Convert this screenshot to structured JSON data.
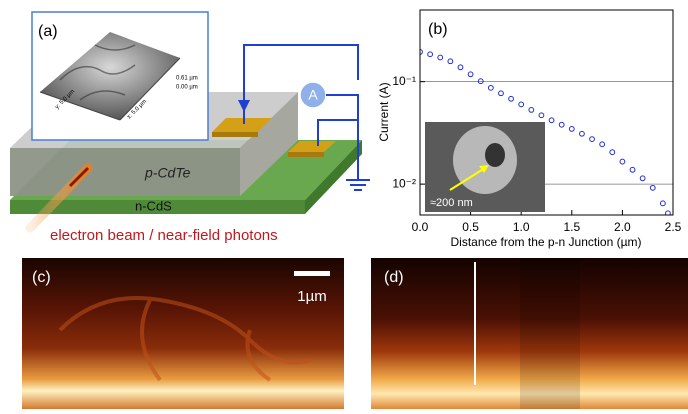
{
  "panels": {
    "a": {
      "label": "(a)",
      "afm_z_top": "0.61 µm",
      "afm_z_bottom": "0.00 µm",
      "afm_y": "y: 5.0 µm",
      "afm_x": "x: 5.0 µm",
      "ammeter": "A",
      "top_layer": "p-CdTe",
      "bottom_layer": "n-CdS",
      "beam": "electron beam / near-field photons"
    },
    "c": {
      "label": "(c)",
      "scale_bar": "1µm"
    },
    "d": {
      "label": "(d)"
    }
  },
  "chart_data": {
    "type": "scatter",
    "panel_label": "(b)",
    "xlabel": "Distance from the p-n Junction (µm)",
    "ylabel": "Current (A)",
    "inset_label": "≈200 nm",
    "x": [
      0.0,
      0.1,
      0.2,
      0.3,
      0.4,
      0.5,
      0.6,
      0.7,
      0.8,
      0.9,
      1.0,
      1.1,
      1.2,
      1.3,
      1.4,
      1.5,
      1.6,
      1.7,
      1.8,
      1.9,
      2.0,
      2.1,
      2.2,
      2.3,
      2.4,
      2.45
    ],
    "series": [
      {
        "color": "#1f2fd0",
        "values": [
          0.195,
          0.185,
          0.172,
          0.158,
          0.138,
          0.118,
          0.101,
          0.087,
          0.077,
          0.068,
          0.06,
          0.053,
          0.047,
          0.042,
          0.038,
          0.0346,
          0.031,
          0.0275,
          0.0245,
          0.0205,
          0.0166,
          0.0138,
          0.0114,
          0.0092,
          0.0065,
          0.0052
        ]
      }
    ],
    "xlim": [
      0,
      2.5
    ],
    "xticks": [
      {
        "value": 0,
        "label": "0.0"
      },
      {
        "value": 0.5,
        "label": "0.5"
      },
      {
        "value": 1,
        "label": "1.0"
      },
      {
        "value": 1.5,
        "label": "1.5"
      },
      {
        "value": 2,
        "label": "2.0"
      },
      {
        "value": 2.5,
        "label": "2.5"
      }
    ],
    "ylim": [
      0.005,
      0.5
    ],
    "log_y": true,
    "yticks": [
      {
        "value": 0.1,
        "label": "10⁻¹"
      },
      {
        "value": 0.01,
        "label": "10⁻²"
      }
    ],
    "grid": true
  }
}
